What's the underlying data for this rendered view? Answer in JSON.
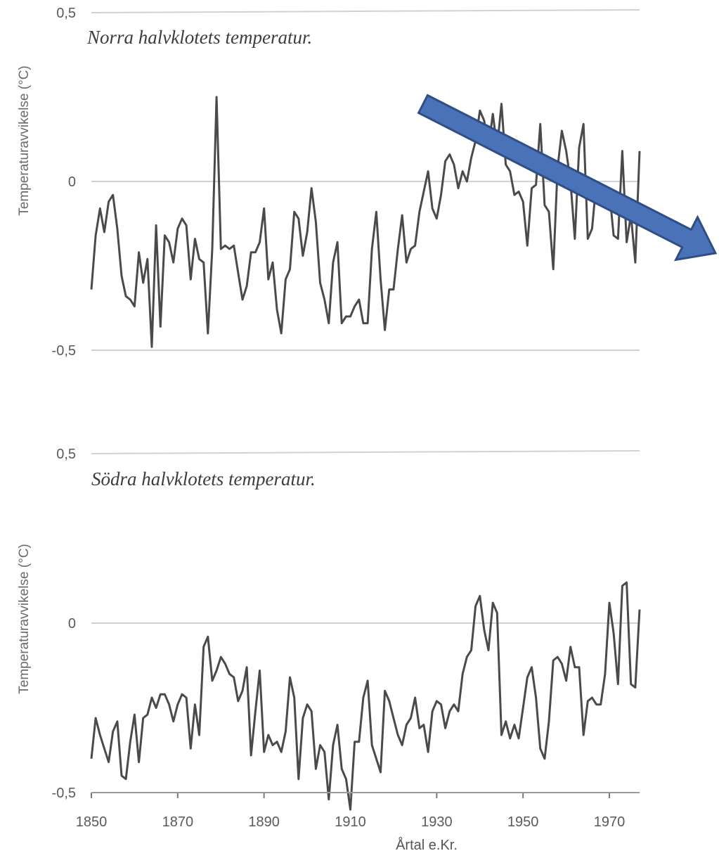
{
  "chart_data": [
    {
      "type": "line",
      "title": "Norra halvklotets temperatur.",
      "ylabel": "Temperaturavvikelse (°C)",
      "xlabel": "",
      "xlim": [
        1850,
        1977
      ],
      "ylim": [
        -0.5,
        0.5
      ],
      "yticks": [
        "0,5",
        "0",
        "-0,5"
      ],
      "grid": true,
      "series": [
        {
          "x": [
            1850,
            1851,
            1852,
            1853,
            1854,
            1855,
            1856,
            1857,
            1858,
            1859,
            1860,
            1861,
            1862,
            1863,
            1864,
            1865,
            1866,
            1867,
            1868,
            1869,
            1870,
            1871,
            1872,
            1873,
            1874,
            1875,
            1876,
            1877,
            1878,
            1879,
            1880,
            1881,
            1882,
            1883,
            1884,
            1885,
            1886,
            1887,
            1888,
            1889,
            1890,
            1891,
            1892,
            1893,
            1894,
            1895,
            1896,
            1897,
            1898,
            1899,
            1900,
            1901,
            1902,
            1903,
            1904,
            1905,
            1906,
            1907,
            1908,
            1909,
            1910,
            1911,
            1912,
            1913,
            1914,
            1915,
            1916,
            1917,
            1918,
            1919,
            1920,
            1921,
            1922,
            1923,
            1924,
            1925,
            1926,
            1927,
            1928,
            1929,
            1930,
            1931,
            1932,
            1933,
            1934,
            1935,
            1936,
            1937,
            1938,
            1939,
            1940,
            1941,
            1942,
            1943,
            1944,
            1945,
            1946,
            1947,
            1948,
            1949,
            1950,
            1951,
            1952,
            1953,
            1954,
            1955,
            1956,
            1957,
            1958,
            1959,
            1960,
            1961,
            1962,
            1963,
            1964,
            1965,
            1966,
            1967,
            1968,
            1969,
            1970,
            1971,
            1972,
            1973,
            1974,
            1975,
            1976,
            1977
          ],
          "values": [
            -0.32,
            -0.16,
            -0.08,
            -0.15,
            -0.06,
            -0.04,
            -0.14,
            -0.28,
            -0.34,
            -0.35,
            -0.37,
            -0.21,
            -0.3,
            -0.23,
            -0.49,
            -0.13,
            -0.43,
            -0.16,
            -0.18,
            -0.24,
            -0.14,
            -0.11,
            -0.13,
            -0.29,
            -0.17,
            -0.23,
            -0.24,
            -0.45,
            -0.2,
            0.25,
            -0.2,
            -0.19,
            -0.2,
            -0.19,
            -0.27,
            -0.35,
            -0.31,
            -0.21,
            -0.21,
            -0.18,
            -0.08,
            -0.29,
            -0.24,
            -0.38,
            -0.45,
            -0.29,
            -0.26,
            -0.09,
            -0.11,
            -0.22,
            -0.15,
            -0.02,
            -0.12,
            -0.3,
            -0.35,
            -0.42,
            -0.24,
            -0.18,
            -0.42,
            -0.4,
            -0.4,
            -0.37,
            -0.35,
            -0.42,
            -0.42,
            -0.2,
            -0.09,
            -0.29,
            -0.44,
            -0.32,
            -0.32,
            -0.2,
            -0.1,
            -0.24,
            -0.2,
            -0.19,
            -0.09,
            -0.03,
            0.03,
            -0.08,
            -0.11,
            -0.04,
            0.06,
            0.08,
            0.05,
            -0.02,
            0.03,
            0.0,
            0.07,
            0.12,
            0.21,
            0.18,
            0.1,
            0.2,
            0.1,
            0.23,
            0.05,
            0.03,
            -0.04,
            -0.03,
            -0.06,
            -0.19,
            -0.02,
            -0.01,
            0.17,
            -0.07,
            -0.09,
            -0.26,
            0.04,
            0.15,
            0.09,
            0.0,
            -0.17,
            0.1,
            0.17,
            -0.17,
            -0.14,
            0.0,
            -0.03,
            -0.03,
            -0.03,
            -0.16,
            -0.17,
            0.09,
            -0.18,
            -0.1,
            -0.24,
            0.09
          ]
        }
      ]
    },
    {
      "type": "line",
      "title": "Södra halvklotets temperatur.",
      "ylabel": "Temperaturavvikelse (°C)",
      "xlabel": "Årtal e.Kr.",
      "xlim": [
        1850,
        1977
      ],
      "ylim": [
        -0.5,
        0.5
      ],
      "xticks": [
        "1850",
        "1870",
        "1890",
        "1910",
        "1930",
        "1950",
        "1970"
      ],
      "yticks": [
        "0,5",
        "0",
        "-0,5"
      ],
      "grid": true,
      "series": [
        {
          "x": [
            1850,
            1851,
            1852,
            1853,
            1854,
            1855,
            1856,
            1857,
            1858,
            1859,
            1860,
            1861,
            1862,
            1863,
            1864,
            1865,
            1866,
            1867,
            1868,
            1869,
            1870,
            1871,
            1872,
            1873,
            1874,
            1875,
            1876,
            1877,
            1878,
            1879,
            1880,
            1881,
            1882,
            1883,
            1884,
            1885,
            1886,
            1887,
            1888,
            1889,
            1890,
            1891,
            1892,
            1893,
            1894,
            1895,
            1896,
            1897,
            1898,
            1899,
            1900,
            1901,
            1902,
            1903,
            1904,
            1905,
            1906,
            1907,
            1908,
            1909,
            1910,
            1911,
            1912,
            1913,
            1914,
            1915,
            1916,
            1917,
            1918,
            1919,
            1920,
            1921,
            1922,
            1923,
            1924,
            1925,
            1926,
            1927,
            1928,
            1929,
            1930,
            1931,
            1932,
            1933,
            1934,
            1935,
            1936,
            1937,
            1938,
            1939,
            1940,
            1941,
            1942,
            1943,
            1944,
            1945,
            1946,
            1947,
            1948,
            1949,
            1950,
            1951,
            1952,
            1953,
            1954,
            1955,
            1956,
            1957,
            1958,
            1959,
            1960,
            1961,
            1962,
            1963,
            1964,
            1965,
            1966,
            1967,
            1968,
            1969,
            1970,
            1971,
            1972,
            1973,
            1974,
            1975,
            1976,
            1977
          ],
          "values": [
            -0.4,
            -0.28,
            -0.33,
            -0.37,
            -0.41,
            -0.32,
            -0.29,
            -0.45,
            -0.46,
            -0.35,
            -0.27,
            -0.41,
            -0.28,
            -0.27,
            -0.22,
            -0.25,
            -0.21,
            -0.21,
            -0.24,
            -0.29,
            -0.24,
            -0.21,
            -0.22,
            -0.37,
            -0.24,
            -0.33,
            -0.07,
            -0.04,
            -0.17,
            -0.14,
            -0.1,
            -0.12,
            -0.15,
            -0.16,
            -0.23,
            -0.2,
            -0.13,
            -0.39,
            -0.26,
            -0.14,
            -0.38,
            -0.33,
            -0.36,
            -0.35,
            -0.38,
            -0.32,
            -0.16,
            -0.22,
            -0.46,
            -0.28,
            -0.24,
            -0.26,
            -0.43,
            -0.36,
            -0.38,
            -0.52,
            -0.36,
            -0.3,
            -0.43,
            -0.46,
            -0.55,
            -0.35,
            -0.35,
            -0.22,
            -0.17,
            -0.36,
            -0.4,
            -0.44,
            -0.2,
            -0.23,
            -0.28,
            -0.33,
            -0.36,
            -0.3,
            -0.28,
            -0.22,
            -0.31,
            -0.3,
            -0.38,
            -0.26,
            -0.23,
            -0.24,
            -0.31,
            -0.26,
            -0.24,
            -0.26,
            -0.15,
            -0.1,
            -0.08,
            0.05,
            0.08,
            -0.02,
            -0.08,
            0.06,
            0.03,
            -0.33,
            -0.29,
            -0.34,
            -0.3,
            -0.34,
            -0.25,
            -0.16,
            -0.13,
            -0.22,
            -0.37,
            -0.4,
            -0.29,
            -0.11,
            -0.1,
            -0.12,
            -0.17,
            -0.07,
            -0.13,
            -0.13,
            -0.33,
            -0.23,
            -0.22,
            -0.24,
            -0.24,
            -0.15,
            0.06,
            -0.03,
            -0.18,
            0.11,
            0.12,
            -0.18,
            -0.19,
            0.04
          ]
        }
      ]
    }
  ],
  "annotation": {
    "shape": "arrow",
    "color": "#4a72b8",
    "outline": "#2f4e86"
  }
}
